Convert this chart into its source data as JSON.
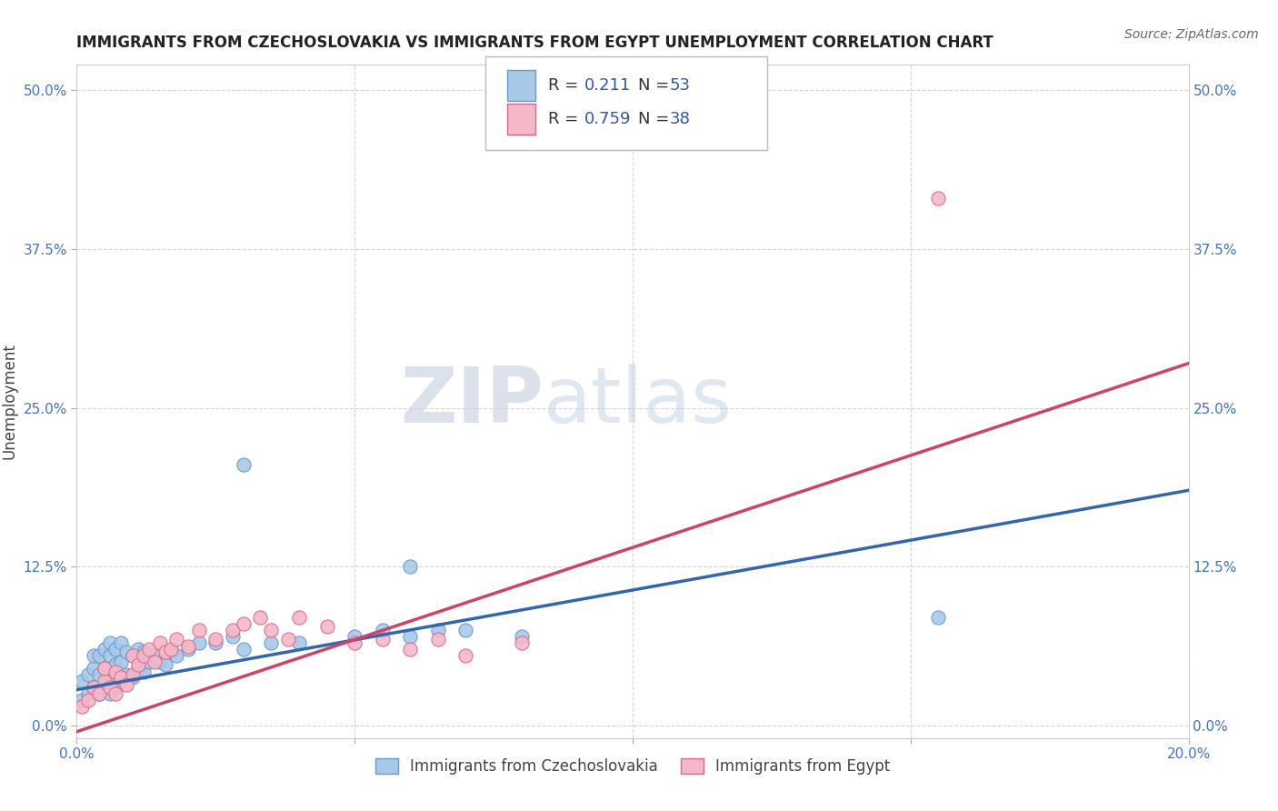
{
  "title": "IMMIGRANTS FROM CZECHOSLOVAKIA VS IMMIGRANTS FROM EGYPT UNEMPLOYMENT CORRELATION CHART",
  "source": "Source: ZipAtlas.com",
  "ylabel": "Unemployment",
  "xlim": [
    0.0,
    0.2
  ],
  "ylim": [
    -0.01,
    0.52
  ],
  "yticks": [
    0.0,
    0.125,
    0.25,
    0.375,
    0.5
  ],
  "ytick_labels": [
    "0.0%",
    "12.5%",
    "25.0%",
    "37.5%",
    "50.0%"
  ],
  "xticks": [
    0.0,
    0.05,
    0.1,
    0.15,
    0.2
  ],
  "xtick_labels": [
    "0.0%",
    "",
    "",
    "",
    "20.0%"
  ],
  "color_blue": "#a8c8e8",
  "color_blue_edge": "#6699cc",
  "color_blue_line": "#3366aa",
  "color_pink": "#f4b8c8",
  "color_pink_edge": "#dd6688",
  "color_pink_line": "#cc4466",
  "watermark_zip": "ZIP",
  "watermark_atlas": "atlas",
  "background_color": "#ffffff",
  "grid_color": "#cccccc",
  "blue_scatter_x": [
    0.001,
    0.001,
    0.002,
    0.002,
    0.003,
    0.003,
    0.003,
    0.004,
    0.004,
    0.004,
    0.005,
    0.005,
    0.005,
    0.006,
    0.006,
    0.006,
    0.006,
    0.007,
    0.007,
    0.007,
    0.008,
    0.008,
    0.008,
    0.009,
    0.009,
    0.01,
    0.01,
    0.011,
    0.011,
    0.012,
    0.012,
    0.013,
    0.014,
    0.015,
    0.016,
    0.017,
    0.018,
    0.02,
    0.022,
    0.025,
    0.028,
    0.03,
    0.035,
    0.04,
    0.05,
    0.055,
    0.06,
    0.065,
    0.07,
    0.08,
    0.155,
    0.03,
    0.06
  ],
  "blue_scatter_y": [
    0.02,
    0.035,
    0.025,
    0.04,
    0.03,
    0.045,
    0.055,
    0.025,
    0.04,
    0.055,
    0.03,
    0.045,
    0.06,
    0.025,
    0.04,
    0.055,
    0.065,
    0.03,
    0.048,
    0.06,
    0.035,
    0.05,
    0.065,
    0.04,
    0.058,
    0.038,
    0.055,
    0.045,
    0.06,
    0.042,
    0.058,
    0.05,
    0.055,
    0.05,
    0.048,
    0.058,
    0.055,
    0.06,
    0.065,
    0.065,
    0.07,
    0.06,
    0.065,
    0.065,
    0.07,
    0.075,
    0.07,
    0.075,
    0.075,
    0.07,
    0.085,
    0.205,
    0.125
  ],
  "pink_scatter_x": [
    0.001,
    0.002,
    0.003,
    0.004,
    0.005,
    0.005,
    0.006,
    0.007,
    0.007,
    0.008,
    0.009,
    0.01,
    0.01,
    0.011,
    0.012,
    0.013,
    0.014,
    0.015,
    0.016,
    0.017,
    0.018,
    0.02,
    0.022,
    0.025,
    0.028,
    0.03,
    0.033,
    0.035,
    0.038,
    0.04,
    0.045,
    0.05,
    0.055,
    0.06,
    0.065,
    0.07,
    0.08,
    0.155
  ],
  "pink_scatter_y": [
    0.015,
    0.02,
    0.03,
    0.025,
    0.035,
    0.045,
    0.03,
    0.025,
    0.042,
    0.038,
    0.032,
    0.04,
    0.055,
    0.048,
    0.055,
    0.06,
    0.05,
    0.065,
    0.058,
    0.06,
    0.068,
    0.062,
    0.075,
    0.068,
    0.075,
    0.08,
    0.085,
    0.075,
    0.068,
    0.085,
    0.078,
    0.065,
    0.068,
    0.06,
    0.068,
    0.055,
    0.065,
    0.415
  ],
  "blue_line_x": [
    0.0,
    0.2
  ],
  "blue_line_y": [
    0.028,
    0.185
  ],
  "pink_line_x": [
    0.0,
    0.2
  ],
  "pink_line_y": [
    -0.005,
    0.285
  ]
}
